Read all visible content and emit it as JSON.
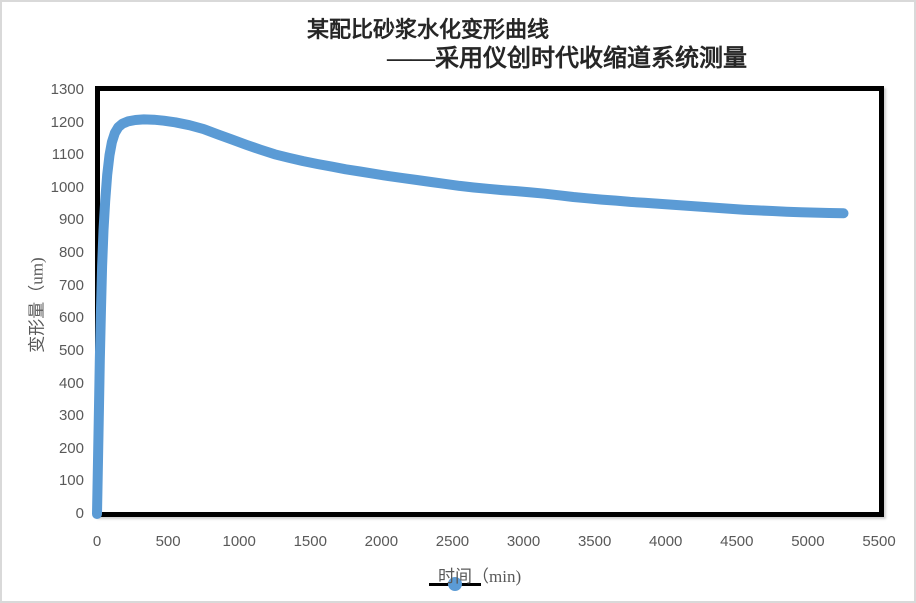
{
  "title": {
    "line1": "某配比砂浆水化变形曲线",
    "line2": "——采用仪创时代收缩道系统测量"
  },
  "axes": {
    "y_title": "变形量（um)"
  },
  "legend": {
    "label": "时间（min)"
  },
  "colors": {
    "series_blue": "#5B9BD5",
    "plot_border": "#000000",
    "tick_text": "#595959",
    "title_text": "#262626",
    "frame_border": "#d9d9d9",
    "legend_line": "#000000"
  },
  "chart_data": {
    "type": "line",
    "title": "某配比砂浆水化变形曲线 ——采用仪创时代收缩道系统测量",
    "xlabel": "",
    "ylabel": "变形量（um)",
    "xlim": [
      0,
      5500
    ],
    "ylim": [
      0,
      1300
    ],
    "x_ticks": [
      0,
      500,
      1000,
      1500,
      2000,
      2500,
      3000,
      3500,
      4000,
      4500,
      5000,
      5500
    ],
    "y_ticks": [
      0,
      100,
      200,
      300,
      400,
      500,
      600,
      700,
      800,
      900,
      1000,
      1100,
      1200,
      1300
    ],
    "grid": false,
    "legend_position": "bottom",
    "series": [
      {
        "name": "时间（min)",
        "color": "#5B9BD5",
        "points": [
          [
            0,
            0
          ],
          [
            8,
            180
          ],
          [
            14,
            330
          ],
          [
            20,
            470
          ],
          [
            28,
            630
          ],
          [
            36,
            760
          ],
          [
            46,
            870
          ],
          [
            58,
            960
          ],
          [
            72,
            1040
          ],
          [
            88,
            1100
          ],
          [
            105,
            1140
          ],
          [
            125,
            1168
          ],
          [
            150,
            1186
          ],
          [
            180,
            1197
          ],
          [
            220,
            1204
          ],
          [
            270,
            1208
          ],
          [
            330,
            1210
          ],
          [
            400,
            1209
          ],
          [
            470,
            1206
          ],
          [
            550,
            1201
          ],
          [
            650,
            1192
          ],
          [
            750,
            1180
          ],
          [
            850,
            1164
          ],
          [
            950,
            1148
          ],
          [
            1050,
            1132
          ],
          [
            1150,
            1117
          ],
          [
            1250,
            1103
          ],
          [
            1350,
            1092
          ],
          [
            1450,
            1082
          ],
          [
            1550,
            1073
          ],
          [
            1650,
            1065
          ],
          [
            1750,
            1057
          ],
          [
            1850,
            1050
          ],
          [
            1950,
            1043
          ],
          [
            2050,
            1036
          ],
          [
            2150,
            1030
          ],
          [
            2250,
            1024
          ],
          [
            2350,
            1018
          ],
          [
            2450,
            1012
          ],
          [
            2550,
            1006
          ],
          [
            2650,
            1001
          ],
          [
            2750,
            997
          ],
          [
            2850,
            993
          ],
          [
            2950,
            990
          ],
          [
            3050,
            986
          ],
          [
            3150,
            982
          ],
          [
            3250,
            977
          ],
          [
            3350,
            972
          ],
          [
            3450,
            968
          ],
          [
            3550,
            964
          ],
          [
            3650,
            961
          ],
          [
            3750,
            957
          ],
          [
            3850,
            954
          ],
          [
            3950,
            951
          ],
          [
            4050,
            948
          ],
          [
            4150,
            945
          ],
          [
            4250,
            942
          ],
          [
            4350,
            939
          ],
          [
            4450,
            936
          ],
          [
            4550,
            933
          ],
          [
            4650,
            931
          ],
          [
            4750,
            929
          ],
          [
            4850,
            927
          ],
          [
            4950,
            925
          ],
          [
            5050,
            924
          ],
          [
            5150,
            923
          ],
          [
            5250,
            922
          ]
        ]
      }
    ]
  }
}
